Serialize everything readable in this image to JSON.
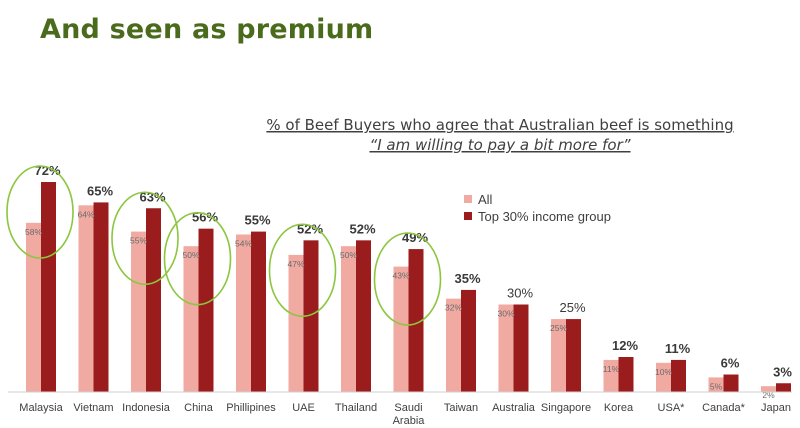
{
  "slide": {
    "title": "And seen as premium"
  },
  "chart_data": {
    "type": "bar",
    "title_line1": "% of Beef Buyers who agree that Australian beef is something",
    "title_line2": "“I am willing to pay a bit more for”",
    "categories": [
      "Malaysia",
      "Vietnam",
      "Indonesia",
      "China",
      "Phillipines",
      "UAE",
      "Thailand",
      "Saudi Arabia",
      "Taiwan",
      "Australia",
      "Singapore",
      "Korea",
      "USA*",
      "Canada*",
      "Japan"
    ],
    "category_lines": [
      [
        "Malaysia"
      ],
      [
        "Vietnam"
      ],
      [
        "Indonesia"
      ],
      [
        "China"
      ],
      [
        "Phillipines"
      ],
      [
        "UAE"
      ],
      [
        "Thailand"
      ],
      [
        "Saudi",
        "Arabia"
      ],
      [
        "Taiwan"
      ],
      [
        "Australia"
      ],
      [
        "Singapore"
      ],
      [
        "Korea"
      ],
      [
        "USA*"
      ],
      [
        "Canada*"
      ],
      [
        "Japan"
      ]
    ],
    "series": [
      {
        "name": "All",
        "color": "#f0aaa2",
        "values": [
          58,
          64,
          55,
          50,
          54,
          47,
          50,
          43,
          32,
          30,
          25,
          11,
          10,
          5,
          2
        ]
      },
      {
        "name": "Top 30% income group",
        "color": "#9b1c1c",
        "values": [
          72,
          65,
          63,
          56,
          55,
          52,
          52,
          49,
          35,
          30,
          25,
          12,
          11,
          6,
          3
        ]
      }
    ],
    "value_format": "{v}%",
    "bold_top_labels": [
      true,
      true,
      true,
      true,
      true,
      true,
      true,
      true,
      true,
      false,
      false,
      true,
      true,
      true,
      true
    ],
    "highlighted": [
      "Malaysia",
      "Indonesia",
      "China",
      "UAE",
      "Saudi Arabia"
    ],
    "highlight_color": "#8cc63f",
    "legend_position": "top-right",
    "grid": false,
    "ylim": [
      0,
      72
    ]
  }
}
